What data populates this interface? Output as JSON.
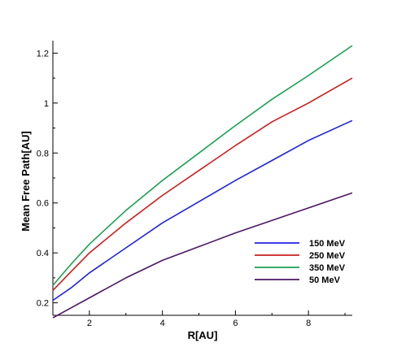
{
  "chart_data": {
    "type": "line",
    "xlabel": "R[AU]",
    "ylabel": "Mean Free Path[AU]",
    "xlim": [
      1,
      9.2
    ],
    "ylim": [
      0.15,
      1.25
    ],
    "xticks": [
      "2",
      "4",
      "6",
      "8"
    ],
    "yticks": [
      "0.2",
      "0.4",
      "0.6",
      "0.8",
      "1",
      "1.2"
    ],
    "grid": false,
    "legend_position": "bottom-right",
    "series": [
      {
        "name": "150 MeV",
        "color": "#1f24e0",
        "points": [
          [
            1,
            0.21
          ],
          [
            1.5,
            0.26
          ],
          [
            2,
            0.32
          ],
          [
            3,
            0.42
          ],
          [
            4,
            0.52
          ],
          [
            5,
            0.605
          ],
          [
            6,
            0.69
          ],
          [
            7,
            0.77
          ],
          [
            8,
            0.85
          ],
          [
            9.2,
            0.93
          ]
        ]
      },
      {
        "name": "250 MeV",
        "color": "#cc1f1f",
        "points": [
          [
            1,
            0.25
          ],
          [
            1.5,
            0.325
          ],
          [
            2,
            0.4
          ],
          [
            3,
            0.52
          ],
          [
            4,
            0.63
          ],
          [
            5,
            0.73
          ],
          [
            6,
            0.83
          ],
          [
            7,
            0.925
          ],
          [
            8,
            1.0
          ],
          [
            9.2,
            1.1
          ]
        ]
      },
      {
        "name": "350 MeV",
        "color": "#1aa052",
        "points": [
          [
            1,
            0.27
          ],
          [
            1.5,
            0.355
          ],
          [
            2,
            0.435
          ],
          [
            3,
            0.57
          ],
          [
            4,
            0.69
          ],
          [
            5,
            0.8
          ],
          [
            6,
            0.91
          ],
          [
            7,
            1.015
          ],
          [
            8,
            1.11
          ],
          [
            9.2,
            1.23
          ]
        ]
      },
      {
        "name": "50 MeV",
        "color": "#4b1764",
        "points": [
          [
            1,
            0.14
          ],
          [
            1.5,
            0.18
          ],
          [
            2,
            0.22
          ],
          [
            3,
            0.3
          ],
          [
            4,
            0.37
          ],
          [
            5,
            0.425
          ],
          [
            6,
            0.48
          ],
          [
            7,
            0.53
          ],
          [
            8,
            0.58
          ],
          [
            9.2,
            0.64
          ]
        ]
      }
    ]
  }
}
